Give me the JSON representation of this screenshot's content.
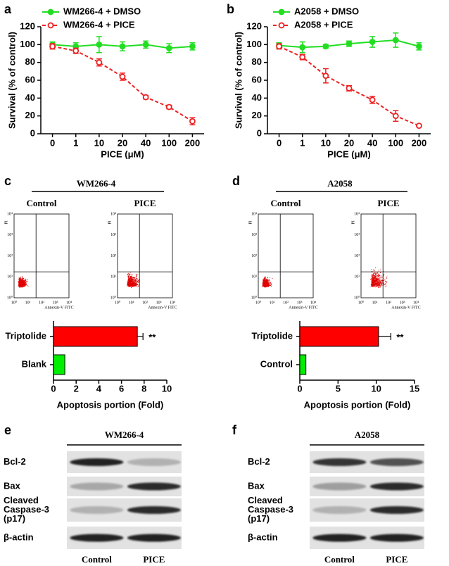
{
  "panel_labels": [
    "a",
    "b",
    "c",
    "d",
    "e",
    "f"
  ],
  "chart_data": [
    {
      "type": "line",
      "ylabel": "Survival (% of control)",
      "xlabel": "PICE (μM)",
      "categories": [
        "0",
        "1",
        "10",
        "20",
        "40",
        "100",
        "200"
      ],
      "ylim": [
        0,
        120
      ],
      "yticks": [
        0,
        20,
        40,
        60,
        80,
        100,
        120
      ],
      "series": [
        {
          "name": "WM266-4 + DMSO",
          "color": "#22dd22",
          "style": "solid",
          "values": [
            100,
            98,
            100,
            98,
            100,
            96,
            98
          ],
          "errors": [
            3,
            4,
            9,
            5,
            4,
            5,
            4
          ]
        },
        {
          "name": "WM266-4 + PICE",
          "color": "#ee2222",
          "style": "dashed",
          "values": [
            98,
            93,
            80,
            64,
            41,
            30,
            14
          ],
          "errors": [
            3,
            3,
            4,
            4,
            2,
            2,
            4
          ]
        }
      ]
    },
    {
      "type": "line",
      "ylabel": "Survival (% of control)",
      "xlabel": "PICE (μM)",
      "categories": [
        "0",
        "1",
        "10",
        "20",
        "40",
        "100",
        "200"
      ],
      "ylim": [
        0,
        120
      ],
      "yticks": [
        0,
        20,
        40,
        60,
        80,
        100,
        120
      ],
      "series": [
        {
          "name": "A2058 + DMSO",
          "color": "#22dd22",
          "style": "solid",
          "values": [
            99,
            97,
            98,
            101,
            103,
            105,
            98
          ],
          "errors": [
            3,
            6,
            2,
            3,
            6,
            8,
            4
          ]
        },
        {
          "name": "A2058 + PICE",
          "color": "#ee2222",
          "style": "dashed",
          "values": [
            98,
            86,
            65,
            51,
            38,
            20,
            9
          ],
          "errors": [
            3,
            3,
            8,
            3,
            4,
            6,
            1
          ]
        }
      ]
    },
    {
      "type": "barh",
      "xlabel": "Apoptosis portion (Fold)",
      "categories": [
        "Triptolide",
        "Blank"
      ],
      "values": [
        7.4,
        1
      ],
      "errors": [
        0.5,
        null
      ],
      "colors": [
        "#ff0000",
        "#00ee00"
      ],
      "xlim": [
        0,
        10
      ],
      "xticks": [
        0,
        2,
        4,
        6,
        8,
        10
      ],
      "annotation": "**"
    },
    {
      "type": "barh",
      "xlabel": "Apoptosis portion (Fold)",
      "categories": [
        "Triptolide",
        "Control"
      ],
      "values": [
        10.3,
        0.8
      ],
      "errors": [
        1.6,
        null
      ],
      "colors": [
        "#ff0000",
        "#00ee00"
      ],
      "xlim": [
        0,
        15
      ],
      "xticks": [
        0,
        5,
        10,
        15
      ],
      "annotation": "**"
    }
  ],
  "flow": {
    "panels": [
      {
        "title": "WM266-4",
        "conditions": [
          "Control",
          "PICE"
        ]
      },
      {
        "title": "A2058",
        "conditions": [
          "Control",
          "PICE"
        ]
      }
    ],
    "tick_labels": [
      "10⁰",
      "10¹",
      "10²",
      "10³",
      "10⁴"
    ],
    "ylabel": "PI",
    "xlabel": "Annexin-V FITC"
  },
  "blots": {
    "panels": [
      {
        "title": "WM266-4"
      },
      {
        "title": "A2058"
      }
    ],
    "rows": [
      [
        "Bcl-2"
      ],
      [
        "Bax"
      ],
      [
        "Cleaved",
        "Caspase-3",
        "(p17)"
      ],
      [
        "β-actin"
      ]
    ],
    "lanes": [
      "Control",
      "PICE"
    ]
  }
}
